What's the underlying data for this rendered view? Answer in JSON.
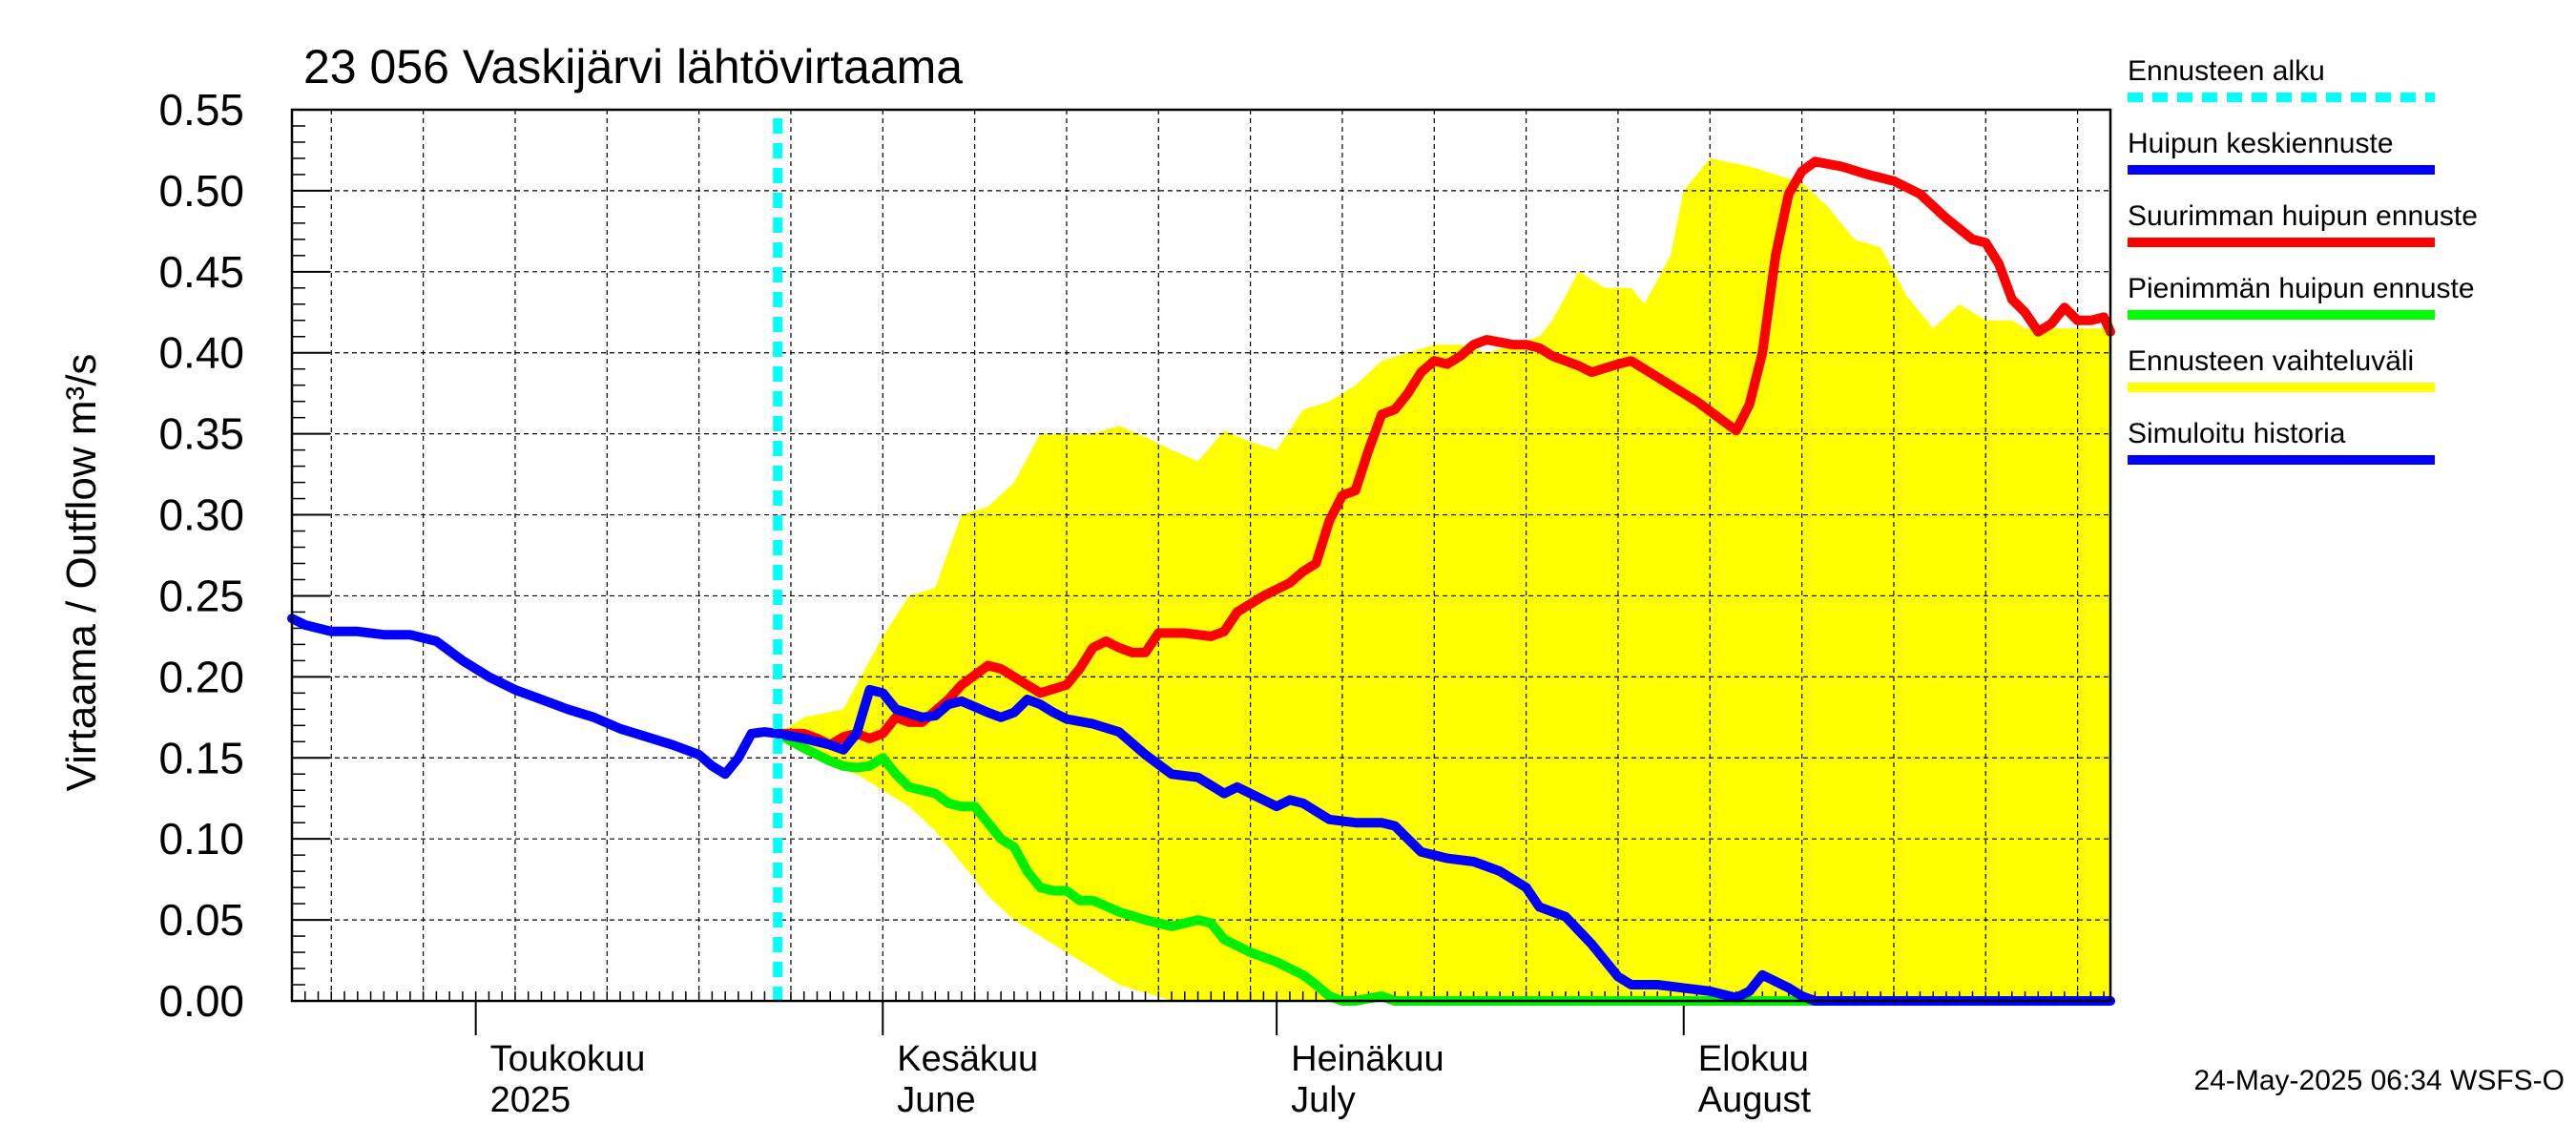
{
  "chart_data": {
    "type": "line",
    "title": "23 056 Vaskijärvi lähtövirtaama",
    "ylabel": "Virtaama / Outflow    m³/s",
    "ylim": [
      0,
      0.55
    ],
    "yticks": [
      0,
      0.05,
      0.1,
      0.15,
      0.2,
      0.25,
      0.3,
      0.35,
      0.4,
      0.45,
      0.5,
      0.55
    ],
    "ytick_labels": [
      "0.00",
      "0.05",
      "0.10",
      "0.15",
      "0.20",
      "0.25",
      "0.30",
      "0.35",
      "0.40",
      "0.45",
      "0.50",
      "0.55"
    ],
    "x_unit": "day of 2025",
    "xlim": [
      107,
      245.5
    ],
    "month_starts": [
      121,
      152,
      182,
      213
    ],
    "month_labels": [
      {
        "day": 121,
        "top": "Toukokuu",
        "bottom": "2025"
      },
      {
        "day": 152,
        "top": "Kesäkuu",
        "bottom": "June"
      },
      {
        "day": 182,
        "top": "Heinäkuu",
        "bottom": "July"
      },
      {
        "day": 213,
        "top": "Elokuu",
        "bottom": "August"
      }
    ],
    "forecast_start_day": 144,
    "series": [
      {
        "name": "Ennusteen vaihteluväli",
        "kind": "band",
        "color": "#ffff00",
        "upper": [
          [
            144,
            0.165
          ],
          [
            146,
            0.175
          ],
          [
            149,
            0.18
          ],
          [
            152,
            0.225
          ],
          [
            154,
            0.25
          ],
          [
            156,
            0.255
          ],
          [
            158,
            0.3
          ],
          [
            160,
            0.305
          ],
          [
            162,
            0.32
          ],
          [
            164,
            0.35
          ],
          [
            166,
            0.35
          ],
          [
            168,
            0.35
          ],
          [
            170,
            0.355
          ],
          [
            172,
            0.348
          ],
          [
            174,
            0.34
          ],
          [
            176,
            0.333
          ],
          [
            178,
            0.352
          ],
          [
            180,
            0.345
          ],
          [
            182,
            0.34
          ],
          [
            184,
            0.365
          ],
          [
            186,
            0.37
          ],
          [
            188,
            0.38
          ],
          [
            190,
            0.395
          ],
          [
            192,
            0.4
          ],
          [
            194,
            0.405
          ],
          [
            196,
            0.405
          ],
          [
            198,
            0.4
          ],
          [
            200,
            0.405
          ],
          [
            202,
            0.41
          ],
          [
            203,
            0.42
          ],
          [
            205,
            0.45
          ],
          [
            207,
            0.44
          ],
          [
            209,
            0.44
          ],
          [
            210,
            0.43
          ],
          [
            212,
            0.46
          ],
          [
            213,
            0.5
          ],
          [
            214,
            0.51
          ],
          [
            215,
            0.52
          ],
          [
            218,
            0.515
          ],
          [
            220,
            0.51
          ],
          [
            222,
            0.505
          ],
          [
            224,
            0.49
          ],
          [
            226,
            0.47
          ],
          [
            228,
            0.465
          ],
          [
            230,
            0.435
          ],
          [
            232,
            0.415
          ],
          [
            234,
            0.43
          ],
          [
            236,
            0.42
          ],
          [
            238,
            0.42
          ],
          [
            239,
            0.415
          ],
          [
            245.5,
            0.415
          ]
        ],
        "lower": [
          [
            144,
            0.165
          ],
          [
            146,
            0.155
          ],
          [
            148,
            0.145
          ],
          [
            150,
            0.14
          ],
          [
            152,
            0.13
          ],
          [
            154,
            0.12
          ],
          [
            156,
            0.105
          ],
          [
            158,
            0.085
          ],
          [
            160,
            0.065
          ],
          [
            162,
            0.05
          ],
          [
            164,
            0.04
          ],
          [
            166,
            0.03
          ],
          [
            168,
            0.02
          ],
          [
            170,
            0.01
          ],
          [
            172,
            0.005
          ],
          [
            174,
            0
          ],
          [
            245.5,
            0
          ]
        ]
      },
      {
        "name": "Simuloitu historia",
        "kind": "line",
        "color": "#0000ff",
        "points": [
          [
            107,
            0.236
          ],
          [
            108,
            0.232
          ],
          [
            110,
            0.228
          ],
          [
            112,
            0.228
          ],
          [
            114,
            0.226
          ],
          [
            116,
            0.226
          ],
          [
            118,
            0.222
          ],
          [
            120,
            0.21
          ],
          [
            122,
            0.2
          ],
          [
            124,
            0.192
          ],
          [
            126,
            0.186
          ],
          [
            128,
            0.18
          ],
          [
            130,
            0.175
          ],
          [
            132,
            0.168
          ],
          [
            134,
            0.163
          ],
          [
            136,
            0.158
          ],
          [
            138,
            0.152
          ],
          [
            139,
            0.145
          ],
          [
            140,
            0.14
          ],
          [
            141,
            0.15
          ],
          [
            142,
            0.165
          ],
          [
            143,
            0.166
          ],
          [
            144,
            0.165
          ]
        ]
      },
      {
        "name": "Huipun keskiennuste",
        "kind": "line",
        "color": "#0000ff",
        "points": [
          [
            144,
            0.165
          ],
          [
            146,
            0.162
          ],
          [
            148,
            0.158
          ],
          [
            149,
            0.155
          ],
          [
            150,
            0.165
          ],
          [
            151,
            0.192
          ],
          [
            152,
            0.19
          ],
          [
            153,
            0.18
          ],
          [
            155,
            0.175
          ],
          [
            156,
            0.176
          ],
          [
            157,
            0.183
          ],
          [
            158,
            0.185
          ],
          [
            160,
            0.178
          ],
          [
            161,
            0.175
          ],
          [
            162,
            0.178
          ],
          [
            163,
            0.186
          ],
          [
            164,
            0.183
          ],
          [
            165,
            0.178
          ],
          [
            166,
            0.174
          ],
          [
            168,
            0.171
          ],
          [
            170,
            0.166
          ],
          [
            172,
            0.152
          ],
          [
            174,
            0.14
          ],
          [
            176,
            0.138
          ],
          [
            178,
            0.128
          ],
          [
            179,
            0.132
          ],
          [
            180,
            0.128
          ],
          [
            182,
            0.12
          ],
          [
            183,
            0.124
          ],
          [
            184,
            0.122
          ],
          [
            186,
            0.112
          ],
          [
            188,
            0.11
          ],
          [
            190,
            0.11
          ],
          [
            191,
            0.108
          ],
          [
            192,
            0.1
          ],
          [
            193,
            0.092
          ],
          [
            195,
            0.088
          ],
          [
            197,
            0.086
          ],
          [
            199,
            0.08
          ],
          [
            201,
            0.07
          ],
          [
            202,
            0.058
          ],
          [
            203,
            0.055
          ],
          [
            204,
            0.052
          ],
          [
            206,
            0.035
          ],
          [
            208,
            0.015
          ],
          [
            209,
            0.01
          ],
          [
            211,
            0.01
          ],
          [
            213,
            0.008
          ],
          [
            215,
            0.006
          ],
          [
            217,
            0.002
          ],
          [
            218,
            0.006
          ],
          [
            219,
            0.016
          ],
          [
            220,
            0.012
          ],
          [
            221,
            0.008
          ],
          [
            222,
            0.003
          ],
          [
            223,
            0
          ],
          [
            245.5,
            0
          ]
        ]
      },
      {
        "name": "Suurimman huipun ennuste",
        "kind": "line",
        "color": "#ff0000",
        "points": [
          [
            144,
            0.165
          ],
          [
            146,
            0.165
          ],
          [
            147,
            0.162
          ],
          [
            148,
            0.158
          ],
          [
            149,
            0.163
          ],
          [
            150,
            0.165
          ],
          [
            151,
            0.162
          ],
          [
            152,
            0.165
          ],
          [
            153,
            0.175
          ],
          [
            154,
            0.172
          ],
          [
            155,
            0.172
          ],
          [
            157,
            0.186
          ],
          [
            158,
            0.195
          ],
          [
            160,
            0.207
          ],
          [
            161,
            0.205
          ],
          [
            162,
            0.2
          ],
          [
            164,
            0.19
          ],
          [
            166,
            0.195
          ],
          [
            167,
            0.205
          ],
          [
            168,
            0.218
          ],
          [
            169,
            0.222
          ],
          [
            170,
            0.218
          ],
          [
            171,
            0.215
          ],
          [
            172,
            0.215
          ],
          [
            173,
            0.227
          ],
          [
            175,
            0.227
          ],
          [
            177,
            0.225
          ],
          [
            178,
            0.228
          ],
          [
            179,
            0.24
          ],
          [
            181,
            0.25
          ],
          [
            183,
            0.258
          ],
          [
            184,
            0.265
          ],
          [
            185,
            0.27
          ],
          [
            186,
            0.296
          ],
          [
            187,
            0.312
          ],
          [
            188,
            0.315
          ],
          [
            189,
            0.34
          ],
          [
            190,
            0.362
          ],
          [
            191,
            0.365
          ],
          [
            192,
            0.375
          ],
          [
            193,
            0.388
          ],
          [
            194,
            0.395
          ],
          [
            195,
            0.393
          ],
          [
            196,
            0.398
          ],
          [
            197,
            0.405
          ],
          [
            198,
            0.408
          ],
          [
            200,
            0.405
          ],
          [
            201,
            0.405
          ],
          [
            202,
            0.403
          ],
          [
            203,
            0.398
          ],
          [
            205,
            0.392
          ],
          [
            206,
            0.388
          ],
          [
            208,
            0.393
          ],
          [
            209,
            0.395
          ],
          [
            210,
            0.39
          ],
          [
            212,
            0.38
          ],
          [
            214,
            0.37
          ],
          [
            216,
            0.358
          ],
          [
            217,
            0.352
          ],
          [
            218,
            0.368
          ],
          [
            219,
            0.4
          ],
          [
            220,
            0.46
          ],
          [
            221,
            0.498
          ],
          [
            222,
            0.512
          ],
          [
            223,
            0.518
          ],
          [
            225,
            0.515
          ],
          [
            227,
            0.51
          ],
          [
            229,
            0.506
          ],
          [
            231,
            0.498
          ],
          [
            233,
            0.483
          ],
          [
            235,
            0.47
          ],
          [
            236,
            0.468
          ],
          [
            237,
            0.455
          ],
          [
            238,
            0.433
          ],
          [
            239,
            0.425
          ],
          [
            240,
            0.413
          ],
          [
            241,
            0.418
          ],
          [
            242,
            0.428
          ],
          [
            243,
            0.42
          ],
          [
            244,
            0.42
          ],
          [
            245,
            0.422
          ],
          [
            245.5,
            0.413
          ]
        ]
      },
      {
        "name": "Pienimmän huipun ennuste",
        "kind": "line",
        "color": "#00ee00",
        "points": [
          [
            144,
            0.165
          ],
          [
            146,
            0.156
          ],
          [
            148,
            0.148
          ],
          [
            149,
            0.145
          ],
          [
            150,
            0.144
          ],
          [
            151,
            0.145
          ],
          [
            152,
            0.15
          ],
          [
            153,
            0.14
          ],
          [
            154,
            0.132
          ],
          [
            155,
            0.13
          ],
          [
            156,
            0.128
          ],
          [
            157,
            0.122
          ],
          [
            158,
            0.12
          ],
          [
            159,
            0.12
          ],
          [
            160,
            0.11
          ],
          [
            161,
            0.1
          ],
          [
            162,
            0.095
          ],
          [
            163,
            0.08
          ],
          [
            164,
            0.07
          ],
          [
            165,
            0.068
          ],
          [
            166,
            0.068
          ],
          [
            167,
            0.062
          ],
          [
            168,
            0.062
          ],
          [
            170,
            0.055
          ],
          [
            172,
            0.05
          ],
          [
            174,
            0.046
          ],
          [
            175,
            0.048
          ],
          [
            176,
            0.05
          ],
          [
            177,
            0.048
          ],
          [
            178,
            0.038
          ],
          [
            180,
            0.03
          ],
          [
            182,
            0.024
          ],
          [
            184,
            0.016
          ],
          [
            185,
            0.01
          ],
          [
            186,
            0.003
          ],
          [
            187,
            0
          ],
          [
            188,
            0
          ],
          [
            190,
            0.003
          ],
          [
            191,
            0
          ],
          [
            245.5,
            0
          ]
        ]
      }
    ],
    "legend": [
      {
        "label": "Ennusteen alku",
        "color": "#00ffff",
        "style": "dashed"
      },
      {
        "label": "Huipun keskiennuste",
        "color": "#0000ff",
        "style": "solid"
      },
      {
        "label": "Suurimman huipun ennuste",
        "color": "#ff0000",
        "style": "solid"
      },
      {
        "label": "Pienimmän huipun ennuste",
        "color": "#00ff00",
        "style": "solid"
      },
      {
        "label": "Ennusteen vaihteluväli",
        "color": "#ffff00",
        "style": "solid"
      },
      {
        "label": "Simuloitu historia",
        "color": "#0000ff",
        "style": "solid"
      }
    ],
    "footer": "24-May-2025 06:34 WSFS-O"
  }
}
